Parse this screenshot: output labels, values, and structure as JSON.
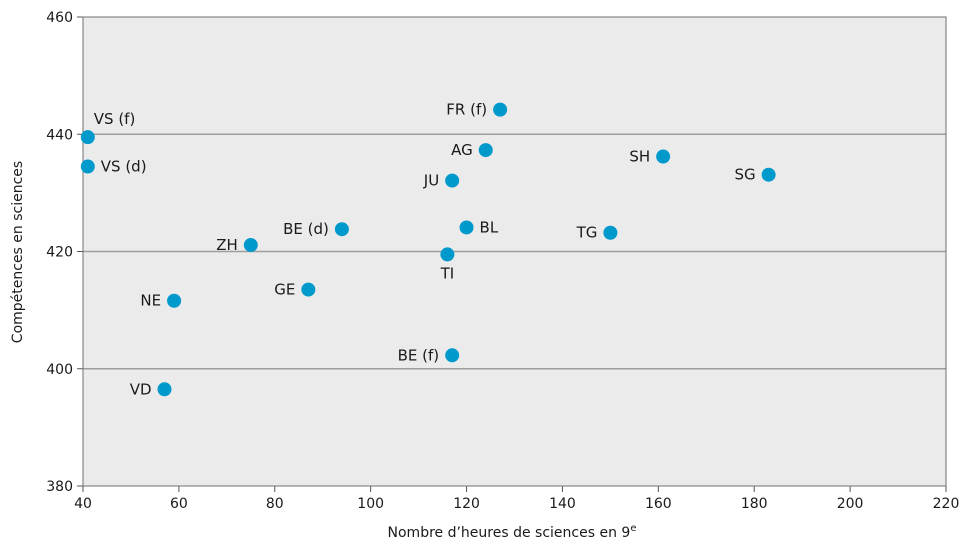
{
  "chart_data": {
    "type": "scatter",
    "title": "",
    "xlabel": "Nombre d’heures de sciences en 9",
    "xlabel_sup": "e",
    "ylabel": "Compétences en sciences",
    "xlim": [
      40,
      220
    ],
    "ylim": [
      380,
      460
    ],
    "xticks": [
      40,
      60,
      80,
      100,
      120,
      140,
      160,
      180,
      200,
      220
    ],
    "yticks": [
      380,
      400,
      420,
      440,
      460
    ],
    "grid": "horizontal",
    "plot_background": "#ebebeb",
    "gridline_color": "#9d9d9d",
    "marker_color": "#0099cc",
    "points": [
      {
        "label": "VS (f)",
        "x": 41,
        "y": 439.5,
        "label_pos": "above-right"
      },
      {
        "label": "VS (d)",
        "x": 41,
        "y": 434.5,
        "label_pos": "right"
      },
      {
        "label": "FR (f)",
        "x": 127,
        "y": 444.2,
        "label_pos": "left"
      },
      {
        "label": "AG",
        "x": 124,
        "y": 437.3,
        "label_pos": "left"
      },
      {
        "label": "JU",
        "x": 117,
        "y": 432.1,
        "label_pos": "left"
      },
      {
        "label": "SH",
        "x": 161,
        "y": 436.2,
        "label_pos": "left"
      },
      {
        "label": "SG",
        "x": 183,
        "y": 433.1,
        "label_pos": "left"
      },
      {
        "label": "BE (d)",
        "x": 94,
        "y": 423.8,
        "label_pos": "left"
      },
      {
        "label": "BL",
        "x": 120,
        "y": 424.1,
        "label_pos": "right"
      },
      {
        "label": "TG",
        "x": 150,
        "y": 423.2,
        "label_pos": "left"
      },
      {
        "label": "ZH",
        "x": 75,
        "y": 421.1,
        "label_pos": "left"
      },
      {
        "label": "TI",
        "x": 116,
        "y": 419.5,
        "label_pos": "below"
      },
      {
        "label": "GE",
        "x": 87,
        "y": 413.5,
        "label_pos": "left"
      },
      {
        "label": "NE",
        "x": 59,
        "y": 411.6,
        "label_pos": "left"
      },
      {
        "label": "BE (f)",
        "x": 117,
        "y": 402.3,
        "label_pos": "left"
      },
      {
        "label": "VD",
        "x": 57,
        "y": 396.5,
        "label_pos": "left"
      }
    ]
  }
}
